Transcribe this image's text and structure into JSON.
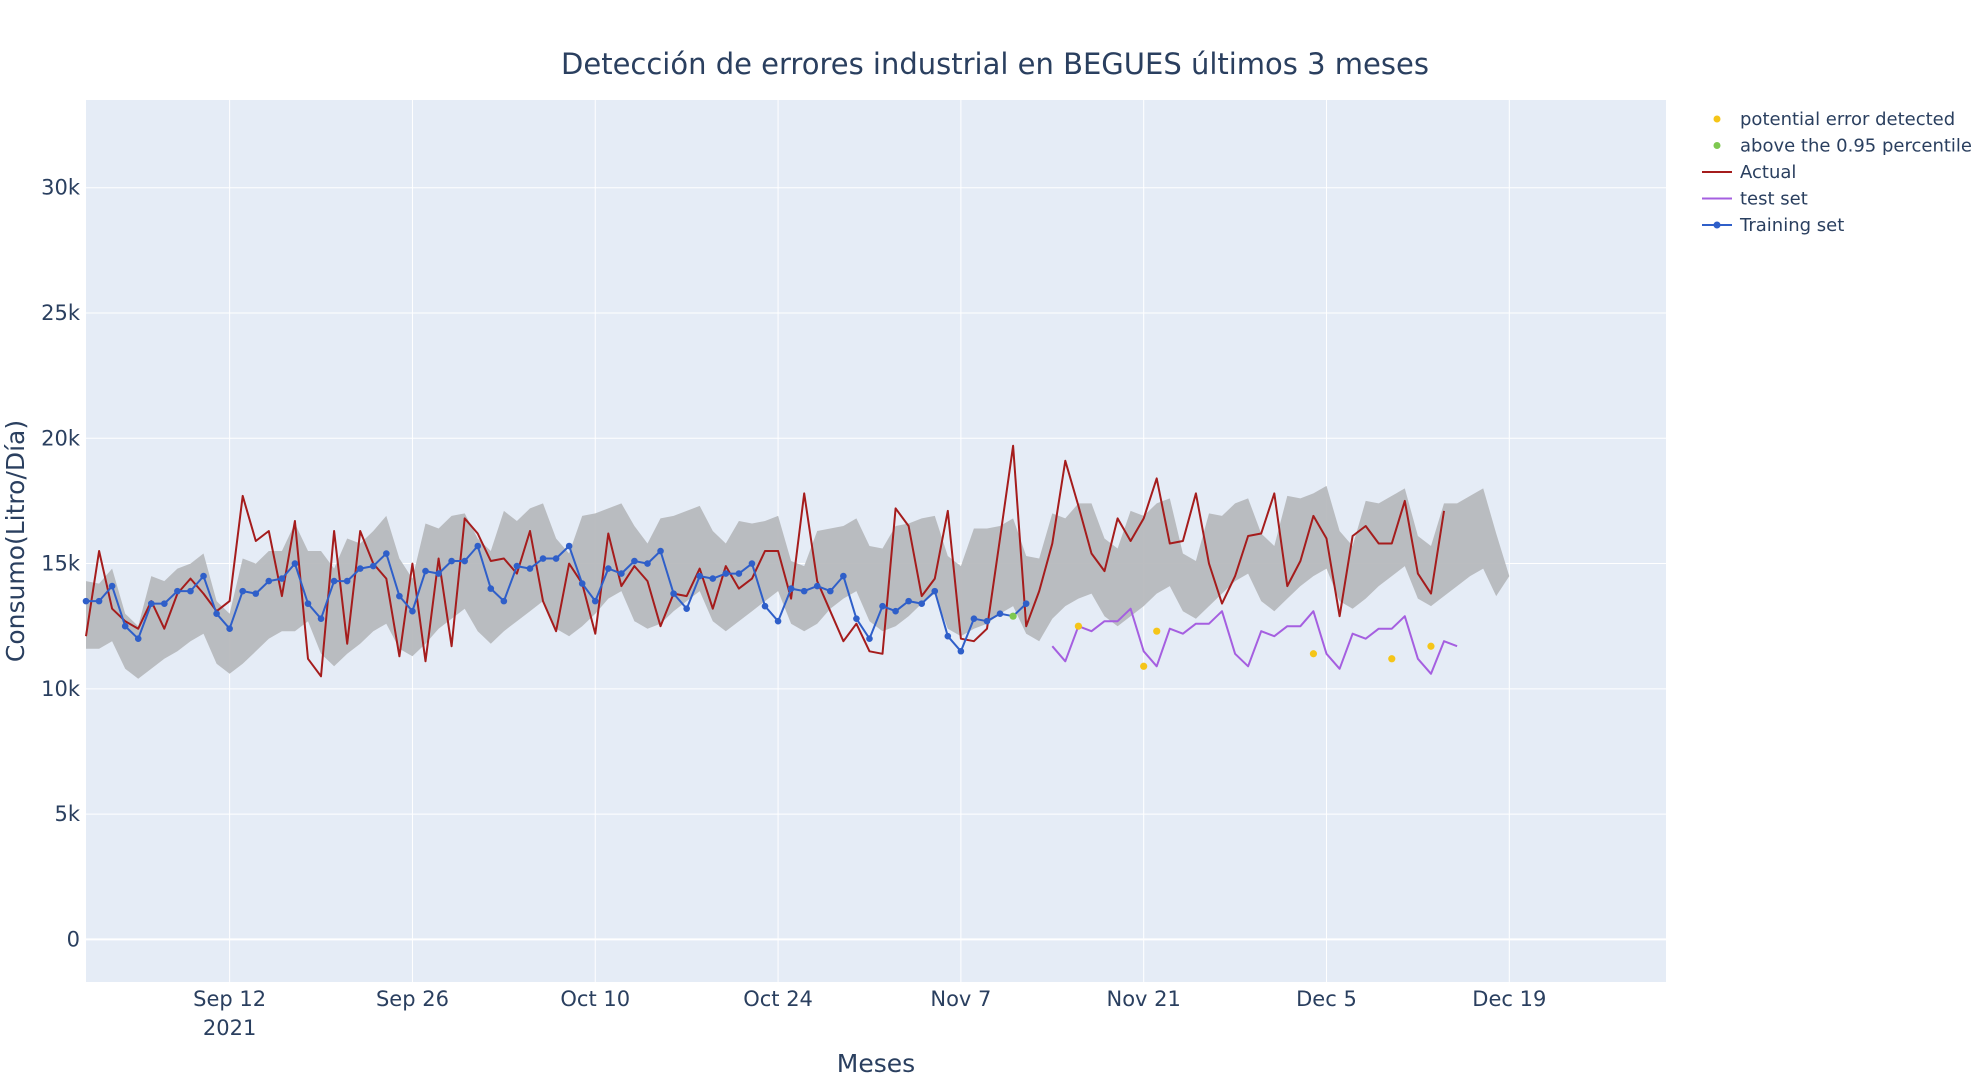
{
  "chart_data": {
    "type": "line",
    "title": "Detección de errores industrial en BEGUES últimos 3 meses",
    "xlabel": "Meses",
    "ylabel": "Consumo(Litro/Día)",
    "x_range": [
      "2021-09-01",
      "2021-12-31"
    ],
    "ylim": [
      -1700,
      33500
    ],
    "x_ticks": [
      {
        "date": "2021-09-12",
        "label": "Sep 12",
        "sublabel": "2021"
      },
      {
        "date": "2021-09-26",
        "label": "Sep 26",
        "sublabel": ""
      },
      {
        "date": "2021-10-10",
        "label": "Oct 10",
        "sublabel": ""
      },
      {
        "date": "2021-10-24",
        "label": "Oct 24",
        "sublabel": ""
      },
      {
        "date": "2021-11-07",
        "label": "Nov 7",
        "sublabel": ""
      },
      {
        "date": "2021-11-21",
        "label": "Nov 21",
        "sublabel": ""
      },
      {
        "date": "2021-12-05",
        "label": "Dec 5",
        "sublabel": ""
      },
      {
        "date": "2021-12-19",
        "label": "Dec 19",
        "sublabel": ""
      }
    ],
    "y_ticks": [
      {
        "value": 0,
        "label": "0"
      },
      {
        "value": 5000,
        "label": "5k"
      },
      {
        "value": 10000,
        "label": "10k"
      },
      {
        "value": 15000,
        "label": "15k"
      },
      {
        "value": 20000,
        "label": "20k"
      },
      {
        "value": 25000,
        "label": "25k"
      },
      {
        "value": 30000,
        "label": "30k"
      }
    ],
    "grid": true,
    "legend_position": "top-right",
    "legend": [
      {
        "name": "potential error detected",
        "kind": "marker",
        "color": "#f5c518"
      },
      {
        "name": "above the 0.95 percentile",
        "kind": "marker",
        "color": "#7ec850"
      },
      {
        "name": "Actual",
        "kind": "line",
        "color": "#a51c1c"
      },
      {
        "name": "test set",
        "kind": "line",
        "color": "#a55fe0"
      },
      {
        "name": "Training set",
        "kind": "line-marker",
        "color": "#2f5fc9"
      }
    ],
    "band": {
      "name": "prediction interval",
      "color": "#b5b7bb",
      "start_date": "2021-09-01",
      "upper": [
        14300,
        14200,
        14800,
        13000,
        12500,
        14500,
        14300,
        14800,
        15000,
        15400,
        13500,
        13000,
        15200,
        15000,
        15500,
        15500,
        16600,
        15500,
        15500,
        14800,
        16000,
        15800,
        16300,
        16900,
        15200,
        14400,
        16600,
        16400,
        16900,
        17000,
        16000,
        15500,
        17100,
        16700,
        17200,
        17400,
        16000,
        15400,
        16900,
        17000,
        17200,
        17400,
        16500,
        15800,
        16800,
        16900,
        17100,
        17300,
        16300,
        15800,
        16700,
        16600,
        16700,
        16900,
        15100,
        14900,
        16300,
        16400,
        16500,
        16800,
        15700,
        15600,
        16500,
        16600,
        16800,
        16900,
        15300,
        14900,
        16400,
        16400,
        16500,
        16800,
        15300,
        15200,
        17000,
        16800,
        17400,
        17400,
        16000,
        15600,
        17100,
        16900,
        17400,
        17600,
        15400,
        15100,
        17000,
        16900,
        17400,
        17600,
        16200,
        15700,
        17700,
        17600,
        17800,
        18100,
        16300,
        15700,
        17500,
        17400,
        17700,
        18000,
        16100,
        15700,
        17400,
        17400,
        17700,
        18000,
        16200,
        14500
      ],
      "lower": [
        11600,
        11600,
        11900,
        10800,
        10400,
        10800,
        11200,
        11500,
        11900,
        12200,
        11000,
        10600,
        11000,
        11500,
        12000,
        12300,
        12300,
        12700,
        11400,
        10900,
        11400,
        11800,
        12300,
        12600,
        11600,
        11300,
        11800,
        12400,
        12800,
        13200,
        12300,
        11800,
        12300,
        12700,
        13100,
        13500,
        12400,
        12100,
        12500,
        13000,
        13600,
        13900,
        12700,
        12400,
        12600,
        13100,
        13500,
        13900,
        12700,
        12300,
        12700,
        13100,
        13500,
        13900,
        12600,
        12300,
        12600,
        13200,
        13600,
        13900,
        12700,
        12300,
        12500,
        12900,
        13400,
        13800,
        12400,
        12100,
        12400,
        12600,
        13000,
        13300,
        12200,
        11900,
        12800,
        13300,
        13600,
        13800,
        12900,
        12500,
        12900,
        13300,
        13800,
        14100,
        13100,
        12800,
        13300,
        13800,
        14300,
        14600,
        13500,
        13100,
        13600,
        14100,
        14500,
        14800,
        13500,
        13200,
        13600,
        14100,
        14500,
        14900,
        13600,
        13300,
        13700,
        14100,
        14500,
        14800,
        13700,
        14500
      ]
    },
    "series": [
      {
        "name": "Actual",
        "color": "#a51c1c",
        "start_date": "2021-09-01",
        "values": [
          12100,
          15500,
          13200,
          12700,
          12400,
          13500,
          12400,
          13800,
          14400,
          13800,
          13100,
          13500,
          17700,
          15900,
          16300,
          13700,
          16700,
          11200,
          10500,
          16300,
          11800,
          16300,
          15000,
          14400,
          11300,
          15000,
          11100,
          15200,
          11700,
          16800,
          16200,
          15100,
          15200,
          14600,
          16300,
          13500,
          12300,
          15000,
          14200,
          12200,
          16200,
          14100,
          14900,
          14300,
          12500,
          13800,
          13700,
          14800,
          13200,
          14900,
          14000,
          14400,
          15500,
          15500,
          13600,
          17800,
          14300,
          13100,
          11900,
          12600,
          11500,
          11400,
          17200,
          16500,
          13700,
          14400,
          17100,
          12000,
          11900,
          12400,
          16000,
          19700,
          12500,
          13900,
          15800,
          19100,
          17300,
          15400,
          14700,
          16800,
          15900,
          16800,
          18400,
          15800,
          15900,
          17800,
          15000,
          13400,
          14500,
          16100,
          16200,
          17800,
          14100,
          15100,
          16900,
          16000,
          12900,
          16100,
          16500,
          15800,
          15800,
          17500,
          14600,
          13800,
          17100
        ]
      },
      {
        "name": "Training set",
        "color": "#2f5fc9",
        "start_date": "2021-09-01",
        "values": [
          13500,
          13500,
          14100,
          12500,
          12000,
          13400,
          13400,
          13900,
          13900,
          14500,
          13000,
          12400,
          13900,
          13800,
          14300,
          14400,
          15000,
          13400,
          12800,
          14300,
          14300,
          14800,
          14900,
          15400,
          13700,
          13100,
          14700,
          14600,
          15100,
          15100,
          15700,
          14000,
          13500,
          14900,
          14800,
          15200,
          15200,
          15700,
          14200,
          13500,
          14800,
          14600,
          15100,
          15000,
          15500,
          13800,
          13200,
          14500,
          14400,
          14600,
          14600,
          15000,
          13300,
          12700,
          14000,
          13900,
          14100,
          13900,
          14500,
          12800,
          12000,
          13300,
          13100,
          13500,
          13400,
          13900,
          12100,
          11500,
          12800,
          12700,
          13000,
          12900,
          13400
        ]
      },
      {
        "name": "test set",
        "color": "#a55fe0",
        "start_date": "2021-11-14",
        "values": [
          11700,
          11100,
          12500,
          12300,
          12700,
          12700,
          13200,
          11500,
          10900,
          12400,
          12200,
          12600,
          12600,
          13100,
          11400,
          10900,
          12300,
          12100,
          12500,
          12500,
          13100,
          11400,
          10800,
          12200,
          12000,
          12400,
          12400,
          12900,
          11200,
          10600,
          11900,
          11700
        ]
      }
    ],
    "markers": {
      "potential_error_detected": [
        {
          "date": "2021-11-16",
          "value": 12500
        },
        {
          "date": "2021-11-21",
          "value": 10900
        },
        {
          "date": "2021-11-22",
          "value": 12300
        },
        {
          "date": "2021-12-04",
          "value": 11400
        },
        {
          "date": "2021-12-10",
          "value": 11200
        },
        {
          "date": "2021-12-13",
          "value": 11700
        }
      ],
      "above_095_percentile": [
        {
          "date": "2021-11-11",
          "value": 12900
        }
      ]
    }
  }
}
